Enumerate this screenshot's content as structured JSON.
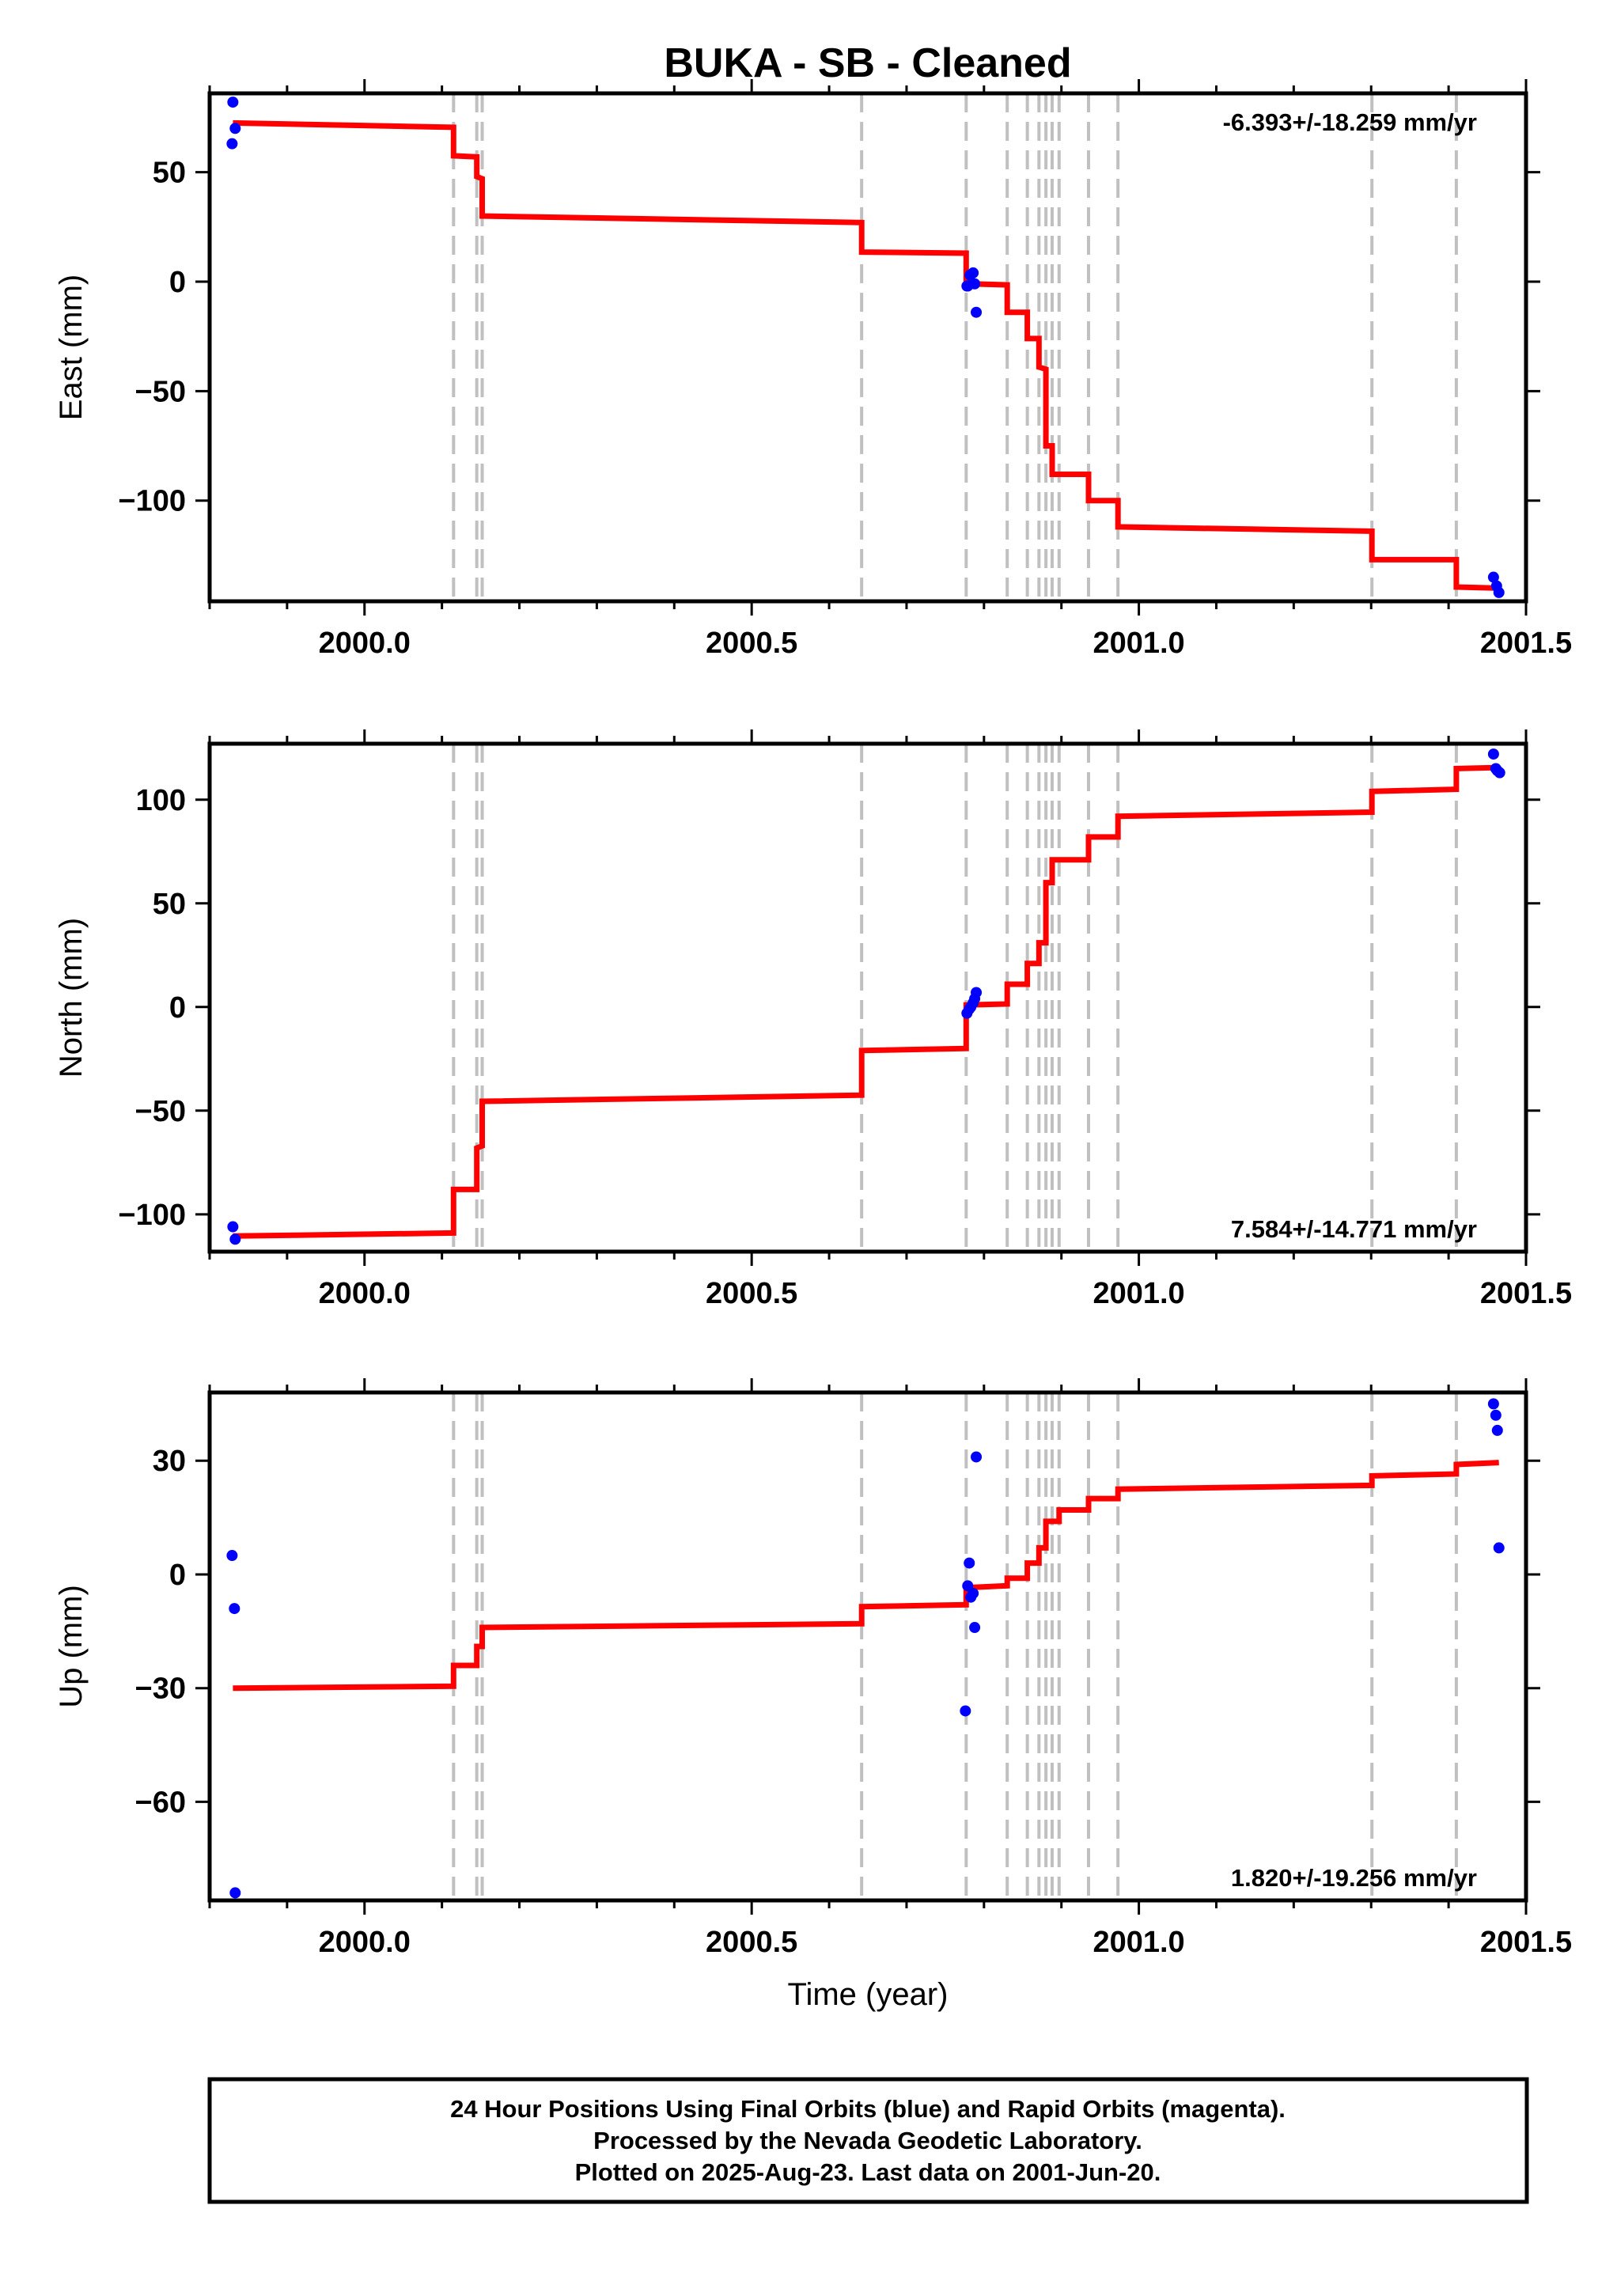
{
  "title": "BUKA  - SB - Cleaned",
  "footer": {
    "line1": "24 Hour Positions Using Final Orbits (blue) and Rapid Orbits (magenta).",
    "line2": "Processed by the Nevada Geodetic Laboratory.",
    "line3": "Plotted on 2025-Aug-23. Last data on 2001-Jun-20."
  },
  "colors": {
    "final_orbit_points": "#0000ff",
    "model_line": "#ff0000",
    "step_lines": "#c0c0c0",
    "frame": "#000000"
  },
  "chart_data": [
    {
      "type": "scatter",
      "name": "east",
      "xlabel": "",
      "ylabel": "East (mm)",
      "xlim": [
        1999.8,
        2001.5
      ],
      "ylim": [
        -146,
        86
      ],
      "xticks": [
        2000.0,
        2000.5,
        2001.0,
        2001.5
      ],
      "xtick_labels": [
        "2000.0",
        "2000.5",
        "2001.0",
        "2001.5"
      ],
      "yticks": [
        50,
        0,
        -50,
        -100
      ],
      "ytick_labels": [
        "50",
        "0",
        "−50",
        "−100"
      ],
      "rate_text": "-6.393+/-18.259 mm/yr",
      "rate_position": "top-right",
      "step_epochs": [
        2000.115,
        2000.145,
        2000.152,
        2000.642,
        2000.777,
        2000.83,
        2000.856,
        2000.871,
        2000.88,
        2000.888,
        2000.897,
        2000.935,
        2000.973,
        2001.301,
        2001.41
      ],
      "points": [
        {
          "x": 1999.83,
          "y": 82
        },
        {
          "x": 1999.833,
          "y": 70
        },
        {
          "x": 1999.829,
          "y": 63
        },
        {
          "x": 2000.778,
          "y": -2
        },
        {
          "x": 2000.779,
          "y": -2
        },
        {
          "x": 2000.782,
          "y": 3
        },
        {
          "x": 2000.786,
          "y": 4
        },
        {
          "x": 2000.788,
          "y": -1
        },
        {
          "x": 2000.79,
          "y": -14
        },
        {
          "x": 2001.458,
          "y": -135
        },
        {
          "x": 2001.462,
          "y": -139
        },
        {
          "x": 2001.465,
          "y": -142
        }
      ],
      "model": [
        [
          1999.83,
          72.5
        ],
        [
          2000.115,
          70.5
        ],
        [
          2000.115,
          57.5
        ],
        [
          2000.145,
          57
        ],
        [
          2000.145,
          48
        ],
        [
          2000.152,
          47
        ],
        [
          2000.152,
          30
        ],
        [
          2000.642,
          27
        ],
        [
          2000.642,
          13.5
        ],
        [
          2000.777,
          13
        ],
        [
          2000.777,
          1
        ],
        [
          2000.785,
          0
        ],
        [
          2000.785,
          -1
        ],
        [
          2000.83,
          -1.5
        ],
        [
          2000.83,
          -14
        ],
        [
          2000.856,
          -14
        ],
        [
          2000.856,
          -26
        ],
        [
          2000.871,
          -26
        ],
        [
          2000.871,
          -39
        ],
        [
          2000.88,
          -40
        ],
        [
          2000.88,
          -75
        ],
        [
          2000.888,
          -75
        ],
        [
          2000.888,
          -88
        ],
        [
          2000.935,
          -88
        ],
        [
          2000.935,
          -100
        ],
        [
          2000.973,
          -100
        ],
        [
          2000.973,
          -112
        ],
        [
          2001.301,
          -114
        ],
        [
          2001.301,
          -127
        ],
        [
          2001.41,
          -127
        ],
        [
          2001.41,
          -139.5
        ],
        [
          2001.465,
          -140
        ]
      ]
    },
    {
      "type": "scatter",
      "name": "north",
      "xlabel": "",
      "ylabel": "North (mm)",
      "xlim": [
        1999.8,
        2001.5
      ],
      "ylim": [
        -118,
        127
      ],
      "xticks": [
        2000.0,
        2000.5,
        2001.0,
        2001.5
      ],
      "xtick_labels": [
        "2000.0",
        "2000.5",
        "2001.0",
        "2001.5"
      ],
      "yticks": [
        100,
        50,
        0,
        -50,
        -100
      ],
      "ytick_labels": [
        "100",
        "50",
        "0",
        "−50",
        "−100"
      ],
      "rate_text": "7.584+/-14.771 mm/yr",
      "rate_position": "bottom-right",
      "step_epochs": [
        2000.115,
        2000.145,
        2000.152,
        2000.642,
        2000.777,
        2000.83,
        2000.856,
        2000.871,
        2000.88,
        2000.888,
        2000.897,
        2000.935,
        2000.973,
        2001.301,
        2001.41
      ],
      "points": [
        {
          "x": 1999.83,
          "y": -106
        },
        {
          "x": 1999.833,
          "y": -112
        },
        {
          "x": 2000.778,
          "y": -3
        },
        {
          "x": 2000.781,
          "y": -1
        },
        {
          "x": 2000.783,
          "y": 0
        },
        {
          "x": 2000.786,
          "y": 2
        },
        {
          "x": 2000.788,
          "y": 4
        },
        {
          "x": 2000.79,
          "y": 7
        },
        {
          "x": 2001.458,
          "y": 122
        },
        {
          "x": 2001.461,
          "y": 115
        },
        {
          "x": 2001.463,
          "y": 114
        },
        {
          "x": 2001.466,
          "y": 113
        }
      ],
      "model": [
        [
          1999.83,
          -110.5
        ],
        [
          2000.115,
          -109
        ],
        [
          2000.115,
          -88
        ],
        [
          2000.145,
          -88
        ],
        [
          2000.145,
          -68
        ],
        [
          2000.152,
          -67
        ],
        [
          2000.152,
          -45.5
        ],
        [
          2000.642,
          -42.5
        ],
        [
          2000.642,
          -21
        ],
        [
          2000.777,
          -20
        ],
        [
          2000.777,
          1
        ],
        [
          2000.83,
          1.5
        ],
        [
          2000.83,
          11
        ],
        [
          2000.856,
          11
        ],
        [
          2000.856,
          21
        ],
        [
          2000.871,
          21
        ],
        [
          2000.871,
          31
        ],
        [
          2000.88,
          31
        ],
        [
          2000.88,
          60
        ],
        [
          2000.888,
          60
        ],
        [
          2000.888,
          71
        ],
        [
          2000.935,
          71
        ],
        [
          2000.935,
          82
        ],
        [
          2000.973,
          82
        ],
        [
          2000.973,
          92
        ],
        [
          2001.301,
          94
        ],
        [
          2001.301,
          104
        ],
        [
          2001.41,
          105
        ],
        [
          2001.41,
          115
        ],
        [
          2001.465,
          115.5
        ]
      ]
    },
    {
      "type": "scatter",
      "name": "up",
      "xlabel": "Time (year)",
      "ylabel": "Up (mm)",
      "xlim": [
        1999.8,
        2001.5
      ],
      "ylim": [
        -86,
        48
      ],
      "xticks": [
        2000.0,
        2000.5,
        2001.0,
        2001.5
      ],
      "xtick_labels": [
        "2000.0",
        "2000.5",
        "2001.0",
        "2001.5"
      ],
      "yticks": [
        30,
        0,
        -30,
        -60
      ],
      "ytick_labels": [
        "30",
        "0",
        "−30",
        "−60"
      ],
      "rate_text": "1.820+/-19.256 mm/yr",
      "rate_position": "bottom-right",
      "step_epochs": [
        2000.115,
        2000.145,
        2000.152,
        2000.642,
        2000.777,
        2000.83,
        2000.856,
        2000.871,
        2000.88,
        2000.888,
        2000.897,
        2000.935,
        2000.973,
        2001.301,
        2001.41
      ],
      "points": [
        {
          "x": 1999.829,
          "y": 5
        },
        {
          "x": 1999.832,
          "y": -9
        },
        {
          "x": 1999.833,
          "y": -84
        },
        {
          "x": 2000.776,
          "y": -36
        },
        {
          "x": 2000.779,
          "y": -3
        },
        {
          "x": 2000.781,
          "y": 3
        },
        {
          "x": 2000.783,
          "y": -6
        },
        {
          "x": 2000.786,
          "y": -5
        },
        {
          "x": 2000.788,
          "y": -14
        },
        {
          "x": 2000.79,
          "y": 31
        },
        {
          "x": 2001.458,
          "y": 45
        },
        {
          "x": 2001.461,
          "y": 42
        },
        {
          "x": 2001.463,
          "y": 38
        },
        {
          "x": 2001.465,
          "y": 7
        }
      ],
      "model": [
        [
          1999.83,
          -30
        ],
        [
          2000.115,
          -29.5
        ],
        [
          2000.115,
          -24
        ],
        [
          2000.145,
          -24
        ],
        [
          2000.145,
          -19
        ],
        [
          2000.152,
          -19
        ],
        [
          2000.152,
          -14
        ],
        [
          2000.642,
          -13
        ],
        [
          2000.642,
          -8.5
        ],
        [
          2000.777,
          -8
        ],
        [
          2000.777,
          -3.5
        ],
        [
          2000.83,
          -3
        ],
        [
          2000.83,
          -1
        ],
        [
          2000.856,
          -1
        ],
        [
          2000.856,
          3
        ],
        [
          2000.871,
          3
        ],
        [
          2000.871,
          7
        ],
        [
          2000.88,
          7
        ],
        [
          2000.88,
          14
        ],
        [
          2000.897,
          14
        ],
        [
          2000.897,
          17
        ],
        [
          2000.935,
          17
        ],
        [
          2000.935,
          20
        ],
        [
          2000.973,
          20
        ],
        [
          2000.973,
          22.5
        ],
        [
          2001.301,
          23.5
        ],
        [
          2001.301,
          26
        ],
        [
          2001.41,
          26.5
        ],
        [
          2001.41,
          29
        ],
        [
          2001.465,
          29.5
        ]
      ]
    }
  ]
}
